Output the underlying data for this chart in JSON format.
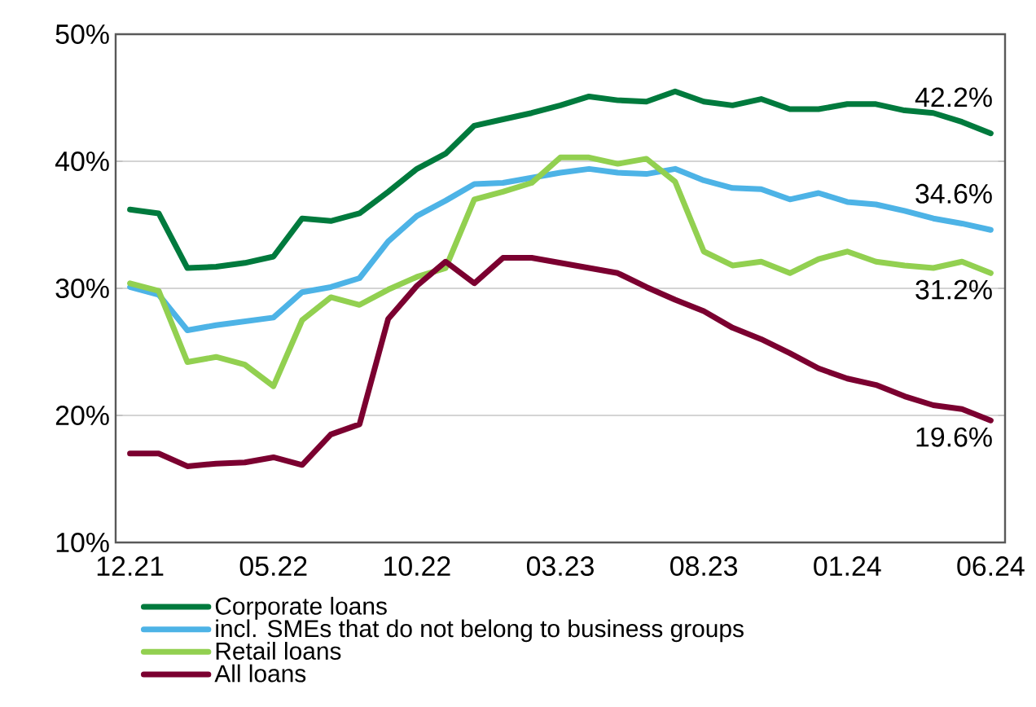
{
  "chart_data": {
    "type": "line",
    "categories": [
      "12.21",
      null,
      null,
      null,
      null,
      "05.22",
      null,
      null,
      null,
      null,
      "10.22",
      null,
      null,
      null,
      null,
      "03.23",
      null,
      null,
      null,
      null,
      "08.23",
      null,
      null,
      null,
      null,
      "01.24",
      null,
      null,
      null,
      null,
      "06.24"
    ],
    "series": [
      {
        "name": "Corporate loans",
        "color": "#007a3d",
        "values": [
          36.2,
          35.9,
          31.6,
          31.7,
          32.0,
          32.5,
          35.5,
          35.3,
          35.9,
          37.6,
          39.4,
          40.6,
          42.8,
          43.3,
          43.8,
          44.4,
          45.1,
          44.8,
          44.7,
          45.5,
          44.7,
          44.4,
          44.9,
          44.1,
          44.1,
          44.5,
          44.5,
          44.0,
          43.8,
          43.1,
          42.2
        ]
      },
      {
        "name": "incl. SMEs that do not belong to business groups",
        "color": "#4db3e6",
        "values": [
          30.1,
          29.5,
          26.7,
          27.1,
          27.4,
          27.7,
          29.7,
          30.1,
          30.8,
          33.7,
          35.7,
          36.9,
          38.2,
          38.3,
          38.7,
          39.1,
          39.4,
          39.1,
          39.0,
          39.4,
          38.5,
          37.9,
          37.8,
          37.0,
          37.5,
          36.8,
          36.6,
          36.1,
          35.5,
          35.1,
          34.6
        ]
      },
      {
        "name": "Retail loans",
        "color": "#92d050",
        "values": [
          30.4,
          29.8,
          24.2,
          24.6,
          24.0,
          22.3,
          27.5,
          29.3,
          28.7,
          29.9,
          30.9,
          31.6,
          37.0,
          37.6,
          38.3,
          40.3,
          40.3,
          39.8,
          40.2,
          38.4,
          32.9,
          31.8,
          32.1,
          31.2,
          32.3,
          32.9,
          32.1,
          31.8,
          31.6,
          32.1,
          31.2
        ]
      },
      {
        "name": "All loans",
        "color": "#7b0030",
        "values": [
          17.0,
          17.0,
          16.0,
          16.2,
          16.3,
          16.7,
          16.1,
          18.5,
          19.3,
          27.6,
          30.2,
          32.1,
          30.4,
          32.4,
          32.4,
          32.0,
          31.6,
          31.2,
          30.1,
          29.1,
          28.2,
          26.9,
          26.0,
          24.9,
          23.7,
          22.9,
          22.4,
          21.5,
          20.8,
          20.5,
          19.6
        ]
      }
    ],
    "ylim": [
      10,
      50
    ],
    "yticks": [
      {
        "value": 10,
        "label": "10%"
      },
      {
        "value": 20,
        "label": "20%"
      },
      {
        "value": 30,
        "label": "30%"
      },
      {
        "value": 40,
        "label": "40%"
      },
      {
        "value": 50,
        "label": "50%"
      }
    ],
    "annotations": [
      {
        "text": "42.2%",
        "x": "06.24",
        "y": 42.2
      },
      {
        "text": "34.6%",
        "x": "06.24",
        "y": 34.6
      },
      {
        "text": "31.2%",
        "x": "06.24",
        "y": 31.2
      },
      {
        "text": "19.6%",
        "x": "06.24",
        "y": 19.6
      }
    ],
    "grid": "y",
    "legend": "bottom",
    "marker": "none",
    "line_style": "solid"
  }
}
